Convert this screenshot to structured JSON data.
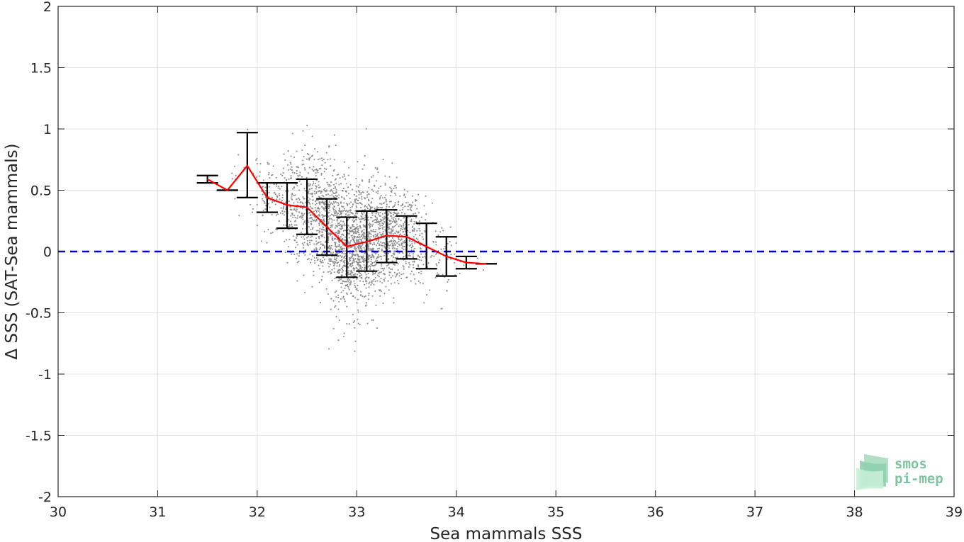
{
  "chart_data": {
    "type": "scatter",
    "title": "",
    "xlabel": "Sea mammals SSS",
    "ylabel": "Δ SSS (SAT-Sea mammals)",
    "xlim": [
      30,
      39
    ],
    "ylim": [
      -2,
      2
    ],
    "xticks": [
      30,
      31,
      32,
      33,
      34,
      35,
      36,
      37,
      38,
      39
    ],
    "yticks": [
      -2,
      -1.5,
      -1,
      -0.5,
      0,
      0.5,
      1,
      1.5,
      2
    ],
    "xtick_labels": [
      "30",
      "31",
      "32",
      "33",
      "34",
      "35",
      "36",
      "37",
      "38",
      "39"
    ],
    "ytick_labels": [
      "-2",
      "-1.5",
      "-1",
      "-0.5",
      "0",
      "0.5",
      "1",
      "1.5",
      "2"
    ],
    "grid": true,
    "reference_line": {
      "y": 0,
      "style": "dashed",
      "color": "#0000cc"
    },
    "scatter_color": "#8c8c8c",
    "binned_mean": {
      "color": "#ff0000",
      "x": [
        31.5,
        31.7,
        31.9,
        32.1,
        32.3,
        32.5,
        32.7,
        32.9,
        33.1,
        33.3,
        33.5,
        33.7,
        33.9,
        34.1,
        34.3
      ],
      "y": [
        0.59,
        0.5,
        0.7,
        0.44,
        0.38,
        0.36,
        0.2,
        0.04,
        0.08,
        0.13,
        0.12,
        0.04,
        -0.04,
        -0.09,
        -0.1
      ]
    },
    "error_bars": {
      "color": "#000000",
      "x": [
        31.5,
        31.7,
        31.9,
        32.1,
        32.3,
        32.5,
        32.7,
        32.9,
        33.1,
        33.3,
        33.5,
        33.7,
        33.9,
        34.1,
        34.3
      ],
      "low": [
        0.56,
        0.5,
        0.44,
        0.32,
        0.19,
        0.14,
        -0.03,
        -0.21,
        -0.16,
        -0.09,
        -0.06,
        -0.14,
        -0.2,
        -0.14,
        -0.1
      ],
      "high": [
        0.62,
        0.5,
        0.97,
        0.56,
        0.56,
        0.59,
        0.43,
        0.28,
        0.33,
        0.34,
        0.29,
        0.23,
        0.12,
        -0.04,
        -0.1
      ]
    },
    "logo": {
      "line1": "smos",
      "line2": "pi-mep"
    }
  }
}
